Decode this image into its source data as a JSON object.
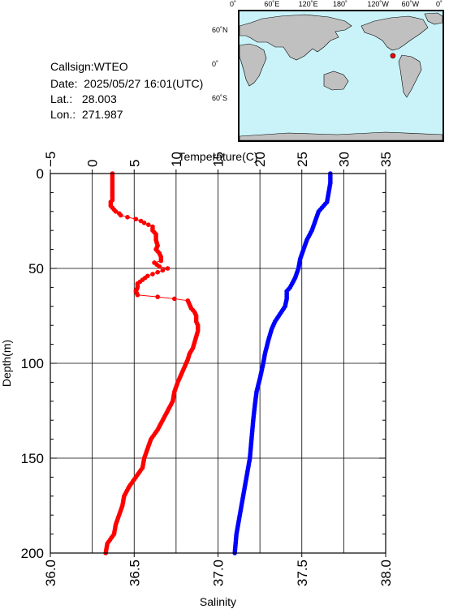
{
  "header": {
    "callsign": "Callsign:WTEO",
    "date": "Date:  2025/05/27 16:01(UTC)",
    "lat": "Lat.:   28.003",
    "lon": "Lon.:  271.987"
  },
  "map": {
    "top_labels": [
      "0˚",
      "60˚E",
      "120˚E",
      "180˚",
      "120˚W",
      "60˚W",
      "0˚"
    ],
    "left_labels": [
      "60˚N",
      "0˚",
      "60˚S"
    ],
    "ocean_color": "#c9f3f8",
    "land_color": "#c0c0c0",
    "marker_color": "#ff0000",
    "station": {
      "lat": 28.003,
      "lon": 271.987
    }
  },
  "chart_data": {
    "type": "line",
    "title": "",
    "ylabel": "Depth(m)",
    "ylim": [
      200,
      0
    ],
    "yticks": [
      "0",
      "50",
      "100",
      "150",
      "200"
    ],
    "top_axis": {
      "label": "Temperature(C)",
      "lim": [
        -5,
        35
      ],
      "ticks": [
        "−5",
        "0",
        "5",
        "10",
        "15",
        "20",
        "25",
        "30",
        "35"
      ]
    },
    "bottom_axis": {
      "label": "Salinity",
      "lim": [
        36.0,
        38.0
      ],
      "ticks": [
        "36.0",
        "36.5",
        "37.0",
        "37.5",
        "38.0"
      ]
    },
    "grid": true,
    "series": [
      {
        "color": "#ff0000",
        "axis": "bottom",
        "marker": "circle",
        "points": [
          [
            36.37,
            0
          ],
          [
            36.37,
            5
          ],
          [
            36.37,
            10
          ],
          [
            36.37,
            14
          ],
          [
            36.36,
            15
          ],
          [
            36.36,
            17
          ],
          [
            36.37,
            18
          ],
          [
            36.38,
            19
          ],
          [
            36.39,
            20
          ],
          [
            36.41,
            21
          ],
          [
            36.42,
            22
          ],
          [
            36.46,
            23
          ],
          [
            36.51,
            24
          ],
          [
            36.54,
            25
          ],
          [
            36.56,
            26
          ],
          [
            36.61,
            28
          ],
          [
            36.61,
            30
          ],
          [
            36.63,
            32
          ],
          [
            36.63,
            35
          ],
          [
            36.64,
            38
          ],
          [
            36.63,
            40
          ],
          [
            36.65,
            42
          ],
          [
            36.66,
            44
          ],
          [
            36.66,
            46
          ],
          [
            36.62,
            47
          ],
          [
            36.65,
            49
          ],
          [
            36.7,
            50
          ],
          [
            36.64,
            52
          ],
          [
            36.58,
            54
          ],
          [
            36.55,
            56
          ],
          [
            36.52,
            58
          ],
          [
            36.52,
            60
          ],
          [
            36.51,
            62
          ],
          [
            36.52,
            64
          ],
          [
            36.64,
            65
          ],
          [
            36.74,
            66
          ],
          [
            36.82,
            67
          ],
          [
            36.83,
            69
          ],
          [
            36.84,
            71
          ],
          [
            36.86,
            73
          ],
          [
            36.87,
            75
          ],
          [
            36.87,
            78
          ],
          [
            36.88,
            80
          ],
          [
            36.88,
            83
          ],
          [
            36.87,
            86
          ],
          [
            36.86,
            89
          ],
          [
            36.85,
            92
          ],
          [
            36.83,
            95
          ],
          [
            36.82,
            98
          ],
          [
            36.8,
            102
          ],
          [
            36.78,
            106
          ],
          [
            36.76,
            110
          ],
          [
            36.74,
            115
          ],
          [
            36.73,
            120
          ],
          [
            36.7,
            125
          ],
          [
            36.67,
            130
          ],
          [
            36.64,
            135
          ],
          [
            36.6,
            140
          ],
          [
            36.58,
            145
          ],
          [
            36.56,
            150
          ],
          [
            36.55,
            155
          ],
          [
            36.51,
            160
          ],
          [
            36.47,
            165
          ],
          [
            36.44,
            170
          ],
          [
            36.43,
            175
          ],
          [
            36.41,
            180
          ],
          [
            36.39,
            185
          ],
          [
            36.38,
            190
          ],
          [
            36.34,
            195
          ],
          [
            36.33,
            200
          ]
        ]
      },
      {
        "color": "#0000ff",
        "axis": "bottom",
        "marker": "circle",
        "points": [
          [
            37.67,
            0
          ],
          [
            37.67,
            5
          ],
          [
            37.66,
            10
          ],
          [
            37.65,
            15
          ],
          [
            37.62,
            18
          ],
          [
            37.6,
            20
          ],
          [
            37.58,
            25
          ],
          [
            37.56,
            30
          ],
          [
            37.53,
            35
          ],
          [
            37.51,
            40
          ],
          [
            37.49,
            45
          ],
          [
            37.48,
            50
          ],
          [
            37.46,
            55
          ],
          [
            37.43,
            60
          ],
          [
            37.41,
            62
          ],
          [
            37.41,
            66
          ],
          [
            37.4,
            70
          ],
          [
            37.37,
            74
          ],
          [
            37.34,
            78
          ],
          [
            37.32,
            82
          ],
          [
            37.3,
            88
          ],
          [
            37.28,
            95
          ],
          [
            37.27,
            100
          ],
          [
            37.25,
            108
          ],
          [
            37.23,
            115
          ],
          [
            37.22,
            122
          ],
          [
            37.21,
            130
          ],
          [
            37.2,
            140
          ],
          [
            37.19,
            150
          ],
          [
            37.17,
            160
          ],
          [
            37.15,
            170
          ],
          [
            37.13,
            180
          ],
          [
            37.11,
            190
          ],
          [
            37.1,
            200
          ]
        ]
      }
    ]
  }
}
